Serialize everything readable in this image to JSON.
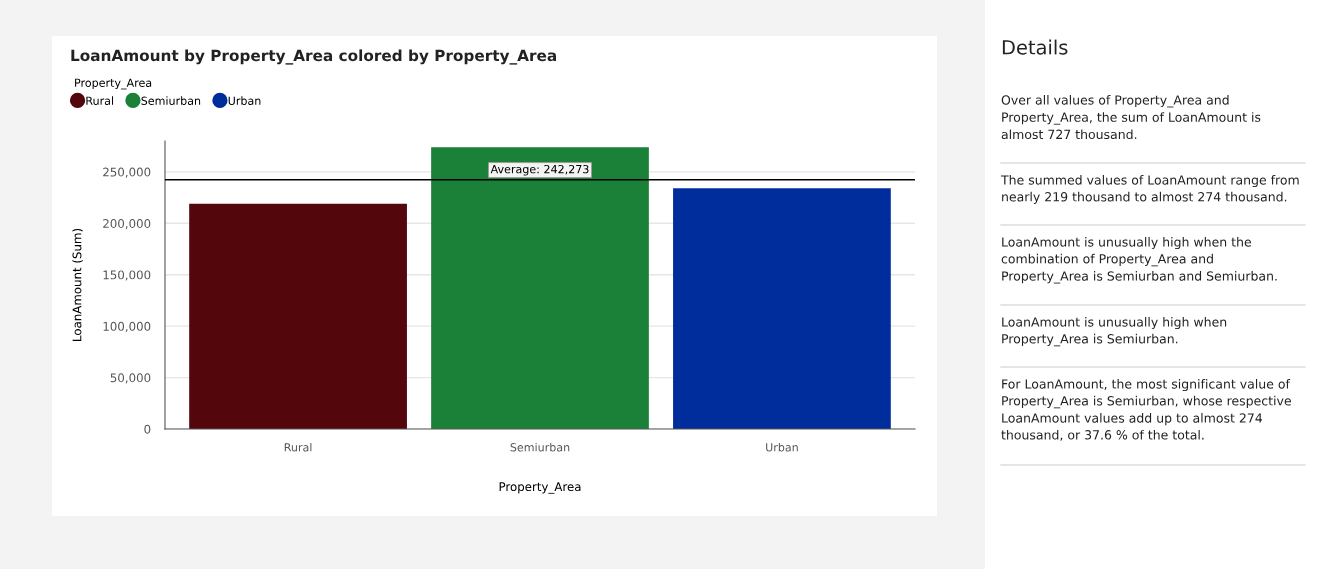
{
  "chart_data": [
    {
      "type": "bar",
      "title": "LoanAmount by Property_Area colored by Property_Area",
      "xlabel": "Property_Area",
      "ylabel": "LoanAmount (Sum)",
      "legend_title": "Property_Area",
      "categories": [
        "Rural",
        "Semiurban",
        "Urban"
      ],
      "series": [
        {
          "name": "Rural",
          "color": "#53060c",
          "values": [
            219000,
            null,
            null
          ]
        },
        {
          "name": "Semiurban",
          "color": "#1b8138",
          "values": [
            null,
            274000,
            null
          ]
        },
        {
          "name": "Urban",
          "color": "#002d9c",
          "values": [
            null,
            null,
            234000
          ]
        }
      ],
      "ylim": [
        0,
        280000
      ],
      "yticks": [
        {
          "value": 0,
          "label": "0"
        },
        {
          "value": 50000,
          "label": "50,000"
        },
        {
          "value": 100000,
          "label": "100,000"
        },
        {
          "value": 150000,
          "label": "150,000"
        },
        {
          "value": 200000,
          "label": "200,000"
        },
        {
          "value": 250000,
          "label": "250,000"
        }
      ],
      "ref_lines": [
        {
          "axis": "y",
          "value": 242273,
          "label": "Average: 242,273",
          "color": "#000000"
        }
      ],
      "grid": "y",
      "legend": "top left"
    },
    {
      "type": "other",
      "title": "Details",
      "annotations": [
        "Over all values of Property_Area and Property_Area, the sum of LoanAmount is almost 727 thousand.",
        "The summed values of LoanAmount range from nearly 219 thousand to almost 274 thousand.",
        "LoanAmount is unusually high when the combination of Property_Area and Property_Area is Semiurban and Semiurban.",
        "LoanAmount is unusually high when Property_Area is Semiurban.",
        "For LoanAmount, the most significant value of Property_Area is Semiurban, whose respective LoanAmount values add up to almost 274 thousand, or 37.6 % of the total."
      ]
    }
  ]
}
